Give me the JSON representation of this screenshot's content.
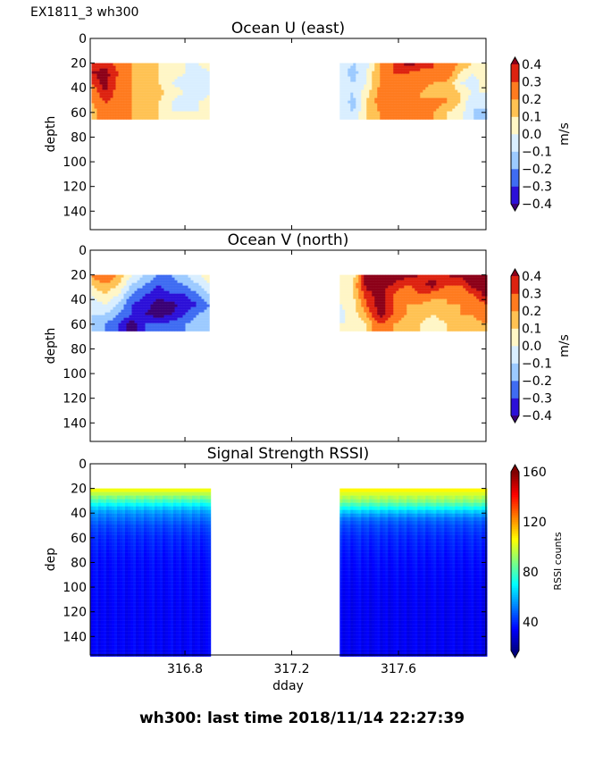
{
  "figure_title": "EX1811_3 wh300",
  "footer": "wh300: last time 2018/11/14 22:27:39",
  "chart_data": [
    {
      "type": "heatmap",
      "title": "Ocean U (east)",
      "xlabel": "",
      "ylabel": "depth",
      "xlim": [
        316.445,
        317.928
      ],
      "ylim": [
        155,
        0
      ],
      "yticks": [
        0,
        20,
        40,
        60,
        80,
        100,
        120,
        140
      ],
      "xticks": [
        316.8,
        317.2,
        317.6
      ],
      "colorbar": {
        "label": "m/s",
        "ticks": [
          "0.4",
          "0.3",
          "0.2",
          "0.1",
          "0.0",
          "−0.1",
          "−0.2",
          "−0.3",
          "−0.4"
        ],
        "levels": [
          -0.4,
          -0.3,
          -0.2,
          -0.1,
          0.0,
          0.1,
          0.2,
          0.3,
          0.4
        ],
        "extend": "both",
        "colors": [
          "#3a0075",
          "#2c10d8",
          "#3f6cf2",
          "#9ccaff",
          "#d9eeff",
          "#fff6c6",
          "#ffc253",
          "#ff7b1f",
          "#dd2210",
          "#8c0018"
        ]
      },
      "depths": [
        20,
        28,
        36,
        44,
        52,
        60
      ],
      "segments": [
        {
          "max_depth": 64,
          "times": [
            316.45,
            316.5,
            316.55,
            316.6,
            316.65,
            316.7,
            316.75,
            316.8,
            316.85,
            316.89
          ],
          "values": [
            [
              0.3,
              0.35,
              0.25,
              0.2,
              0.15,
              0.1,
              0.05,
              0.0,
              0.0,
              0.05
            ],
            [
              0.4,
              0.45,
              0.3,
              0.2,
              0.2,
              0.1,
              0.05,
              0.0,
              -0.05,
              0.0
            ],
            [
              0.3,
              0.45,
              0.25,
              0.2,
              0.15,
              0.1,
              0.0,
              -0.05,
              0.0,
              0.0
            ],
            [
              0.2,
              0.4,
              0.25,
              0.2,
              0.2,
              0.15,
              0.05,
              0.0,
              -0.1,
              0.0
            ],
            [
              0.2,
              0.3,
              0.25,
              0.2,
              0.15,
              0.1,
              0.0,
              -0.1,
              0.0,
              0.05
            ],
            [
              0.15,
              0.25,
              0.2,
              0.2,
              0.15,
              0.1,
              0.0,
              0.0,
              0.0,
              0.05
            ]
          ]
        },
        {
          "max_depth": 64,
          "times": [
            317.38,
            317.43,
            317.48,
            317.53,
            317.58,
            317.63,
            317.68,
            317.73,
            317.78,
            317.83,
            317.88,
            317.93
          ],
          "values": [
            [
              0.0,
              -0.1,
              -0.05,
              0.2,
              0.3,
              0.45,
              0.4,
              0.3,
              0.25,
              0.2,
              0.1,
              0.05
            ],
            [
              -0.05,
              -0.15,
              0.0,
              0.2,
              0.3,
              0.3,
              0.25,
              0.3,
              0.3,
              0.1,
              0.0,
              0.1
            ],
            [
              0.0,
              -0.1,
              0.0,
              0.2,
              0.25,
              0.2,
              0.25,
              0.2,
              0.2,
              0.0,
              -0.05,
              0.05
            ],
            [
              -0.05,
              -0.1,
              0.05,
              0.25,
              0.2,
              0.25,
              0.2,
              0.15,
              0.2,
              0.1,
              0.0,
              0.0
            ],
            [
              0.0,
              -0.15,
              0.1,
              0.25,
              0.3,
              0.2,
              0.2,
              0.25,
              0.2,
              0.1,
              -0.1,
              -0.05
            ],
            [
              0.0,
              -0.1,
              0.1,
              0.2,
              0.3,
              0.25,
              0.2,
              0.2,
              0.1,
              0.05,
              -0.1,
              -0.15
            ]
          ]
        }
      ]
    },
    {
      "type": "heatmap",
      "title": "Ocean V (north)",
      "xlabel": "",
      "ylabel": "depth",
      "xlim": [
        316.445,
        317.928
      ],
      "ylim": [
        155,
        0
      ],
      "yticks": [
        0,
        20,
        40,
        60,
        80,
        100,
        120,
        140
      ],
      "xticks": [
        316.8,
        317.2,
        317.6
      ],
      "colorbar": {
        "label": "m/s",
        "ticks": [
          "0.4",
          "0.3",
          "0.2",
          "0.1",
          "0.0",
          "−0.1",
          "−0.2",
          "−0.3",
          "−0.4"
        ],
        "levels": [
          -0.4,
          -0.3,
          -0.2,
          -0.1,
          0.0,
          0.1,
          0.2,
          0.3,
          0.4
        ],
        "extend": "both",
        "colors": [
          "#3a0075",
          "#2c10d8",
          "#3f6cf2",
          "#9ccaff",
          "#d9eeff",
          "#fff6c6",
          "#ffc253",
          "#ff7b1f",
          "#dd2210",
          "#8c0018"
        ]
      },
      "depths": [
        20,
        28,
        36,
        44,
        52,
        60
      ],
      "segments": [
        {
          "max_depth": 64,
          "times": [
            316.45,
            316.5,
            316.55,
            316.6,
            316.65,
            316.7,
            316.75,
            316.8,
            316.85,
            316.89
          ],
          "values": [
            [
              0.25,
              0.3,
              0.2,
              0.0,
              -0.1,
              -0.2,
              -0.2,
              -0.1,
              0.0,
              0.05
            ],
            [
              0.1,
              0.2,
              0.1,
              -0.1,
              -0.2,
              -0.3,
              -0.25,
              -0.2,
              -0.1,
              0.0
            ],
            [
              0.0,
              0.1,
              0.0,
              -0.2,
              -0.3,
              -0.35,
              -0.3,
              -0.3,
              -0.2,
              -0.1
            ],
            [
              -0.05,
              0.0,
              -0.1,
              -0.3,
              -0.35,
              -0.45,
              -0.45,
              -0.35,
              -0.3,
              -0.2
            ],
            [
              -0.1,
              -0.1,
              -0.2,
              -0.3,
              -0.4,
              -0.45,
              -0.4,
              -0.3,
              -0.2,
              -0.15
            ],
            [
              -0.1,
              -0.2,
              -0.3,
              -0.45,
              -0.3,
              -0.3,
              -0.25,
              -0.2,
              -0.15,
              -0.1
            ]
          ]
        },
        {
          "max_depth": 64,
          "times": [
            317.38,
            317.43,
            317.48,
            317.53,
            317.58,
            317.63,
            317.68,
            317.73,
            317.78,
            317.83,
            317.88,
            317.93
          ],
          "values": [
            [
              0.0,
              0.05,
              0.45,
              0.45,
              0.45,
              0.45,
              0.4,
              0.35,
              0.4,
              0.45,
              0.45,
              0.45
            ],
            [
              0.0,
              0.1,
              0.45,
              0.45,
              0.4,
              0.3,
              0.35,
              0.45,
              0.3,
              0.3,
              0.45,
              0.45
            ],
            [
              0.0,
              0.1,
              0.35,
              0.45,
              0.3,
              0.2,
              0.3,
              0.25,
              0.2,
              0.2,
              0.3,
              0.45
            ],
            [
              0.0,
              0.05,
              0.3,
              0.45,
              0.3,
              0.2,
              0.2,
              0.15,
              0.2,
              0.2,
              0.2,
              0.3
            ],
            [
              -0.05,
              0.05,
              0.2,
              0.45,
              0.3,
              0.2,
              0.15,
              0.1,
              0.15,
              0.2,
              0.2,
              0.3
            ],
            [
              0.0,
              0.0,
              0.1,
              0.3,
              0.2,
              0.15,
              0.1,
              0.05,
              0.1,
              0.1,
              0.15,
              0.2
            ]
          ]
        }
      ]
    },
    {
      "type": "heatmap",
      "title": "Signal Strength RSSI)",
      "xlabel": "dday",
      "ylabel": "dep",
      "xlim": [
        316.445,
        317.928
      ],
      "ylim": [
        155,
        0
      ],
      "yticks": [
        0,
        20,
        40,
        60,
        80,
        100,
        120,
        140
      ],
      "xticks": [
        316.8,
        317.2,
        317.6
      ],
      "xticklabels": [
        "316.8",
        "317.2",
        "317.6"
      ],
      "colorbar": {
        "label": "RSSI counts",
        "colormap": "jet",
        "clim": [
          17,
          160
        ],
        "ticks": [
          160,
          120,
          80,
          40
        ],
        "extend": "both"
      },
      "depths": [
        20,
        25,
        30,
        35,
        40,
        45,
        50,
        60,
        80,
        100,
        120,
        155
      ],
      "segments": [
        {
          "times": [
            316.445,
            316.89
          ],
          "profile": [
            108,
            95,
            80,
            65,
            55,
            50,
            45,
            40,
            36,
            35,
            34,
            34
          ]
        },
        {
          "times": [
            317.38,
            317.928
          ],
          "profile": [
            110,
            100,
            90,
            75,
            60,
            50,
            45,
            40,
            36,
            34,
            33,
            33
          ]
        }
      ]
    }
  ]
}
